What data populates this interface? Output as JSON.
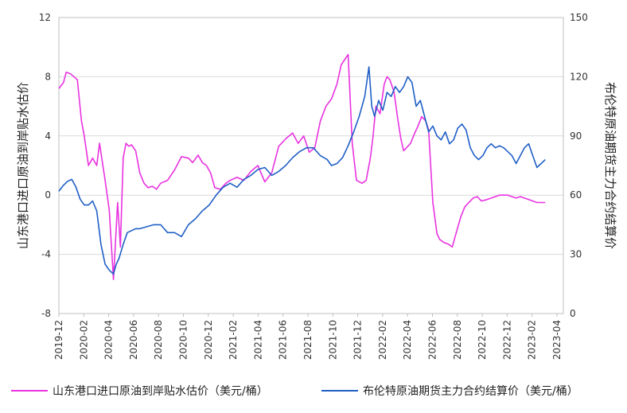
{
  "chart_data": {
    "type": "line",
    "title": "",
    "ylabel_left": "山东港口进口原油到岸贴水估价",
    "ylabel_right": "布伦特原油期货主力合约结算价",
    "ylim_left": [
      -8,
      12
    ],
    "ylim_right": [
      0,
      150
    ],
    "yticks_left": [
      "12",
      "8",
      "4",
      "0",
      "-4",
      "-8"
    ],
    "yticks_right": [
      "150",
      "120",
      "90",
      "60",
      "30",
      "0"
    ],
    "x_tick_labels": [
      "2019-12",
      "2020-02",
      "2020-04",
      "2020-06",
      "2020-08",
      "2020-10",
      "2020-12",
      "2021-02",
      "2021-04",
      "2021-06",
      "2021-08",
      "2021-10",
      "2021-12",
      "2022-02",
      "2022-04",
      "2022-06",
      "2022-08",
      "2022-10",
      "2022-12",
      "2023-02",
      "2023-04"
    ],
    "grid": true,
    "legend_position": "bottom",
    "series": [
      {
        "name": "山东港口进口原油到岸贴水估价（美元/桶）",
        "axis": "left",
        "color": "#e833e0",
        "x": [
          2019.917,
          2019.95,
          2019.97,
          2020.0,
          2020.05,
          2020.08,
          2020.1,
          2020.13,
          2020.16,
          2020.19,
          2020.21,
          2020.25,
          2020.28,
          2020.31,
          2020.34,
          2020.36,
          2020.38,
          2020.4,
          2020.42,
          2020.44,
          2020.47,
          2020.5,
          2020.53,
          2020.56,
          2020.59,
          2020.62,
          2020.65,
          2020.7,
          2020.75,
          2020.8,
          2020.85,
          2020.88,
          2020.92,
          2020.95,
          2020.98,
          2021.01,
          2021.04,
          2021.08,
          2021.12,
          2021.15,
          2021.2,
          2021.25,
          2021.3,
          2021.35,
          2021.4,
          2021.45,
          2021.5,
          2021.55,
          2021.6,
          2021.64,
          2021.68,
          2021.72,
          2021.76,
          2021.8,
          2021.84,
          2021.88,
          2021.92,
          2021.95,
          2022.0,
          2022.03,
          2022.06,
          2022.1,
          2022.13,
          2022.16,
          2022.18,
          2022.2,
          2022.23,
          2022.26,
          2022.28,
          2022.3,
          2022.33,
          2022.36,
          2022.38,
          2022.4,
          2022.42,
          2022.45,
          2022.48,
          2022.5,
          2022.53,
          2022.56,
          2022.58,
          2022.61,
          2022.64,
          2022.66,
          2022.69,
          2022.72,
          2022.75,
          2022.78,
          2022.81,
          2022.84,
          2022.87,
          2022.9,
          2022.93,
          2022.96,
          2023.0,
          2023.03,
          2023.06,
          2023.09,
          2023.12,
          2023.15,
          2023.18,
          2023.21,
          2023.24,
          2023.27,
          2023.3,
          2023.33,
          2023.36,
          2023.39,
          2023.42
        ],
        "y": [
          7.2,
          7.6,
          8.3,
          8.2,
          7.8,
          5.0,
          4.0,
          2.0,
          2.5,
          2.0,
          3.5,
          1.0,
          -1.0,
          -5.7,
          -0.5,
          -3.5,
          2.5,
          3.5,
          3.3,
          3.4,
          3.0,
          1.5,
          0.8,
          0.5,
          0.6,
          0.4,
          0.8,
          1.0,
          1.7,
          2.6,
          2.5,
          2.2,
          2.7,
          2.2,
          2.0,
          1.5,
          0.5,
          0.4,
          0.8,
          1.0,
          1.2,
          1.0,
          1.6,
          2.0,
          0.9,
          1.5,
          3.3,
          3.8,
          4.2,
          3.5,
          4.0,
          2.9,
          3.2,
          5.0,
          6.0,
          6.5,
          7.5,
          8.8,
          9.5,
          3.5,
          1.0,
          0.8,
          1.0,
          2.5,
          4.0,
          6.0,
          5.5,
          7.5,
          8.0,
          7.8,
          7.0,
          5.0,
          3.8,
          3.0,
          3.2,
          3.5,
          4.2,
          4.6,
          5.3,
          5.0,
          4.4,
          -0.5,
          -2.6,
          -3.0,
          -3.2,
          -3.3,
          -3.5,
          -2.5,
          -1.5,
          -0.8,
          -0.5,
          -0.2,
          -0.1,
          -0.4,
          -0.3,
          -0.2,
          -0.1,
          0.0,
          0.0,
          0.0,
          -0.1,
          -0.2,
          -0.1,
          -0.2,
          -0.3,
          -0.4,
          -0.5,
          -0.5,
          -0.5
        ]
      },
      {
        "name": "布伦特原油期货主力合约结算价（美元/桶）",
        "axis": "right",
        "color": "#1f5fc6",
        "x": [
          2019.917,
          2019.95,
          2019.98,
          2020.01,
          2020.04,
          2020.07,
          2020.1,
          2020.13,
          2020.16,
          2020.19,
          2020.22,
          2020.25,
          2020.28,
          2020.31,
          2020.33,
          2020.35,
          2020.38,
          2020.41,
          2020.44,
          2020.47,
          2020.5,
          2020.55,
          2020.6,
          2020.65,
          2020.7,
          2020.75,
          2020.8,
          2020.85,
          2020.9,
          2020.95,
          2021.0,
          2021.05,
          2021.1,
          2021.15,
          2021.2,
          2021.25,
          2021.3,
          2021.35,
          2021.4,
          2021.45,
          2021.5,
          2021.55,
          2021.6,
          2021.65,
          2021.7,
          2021.75,
          2021.8,
          2021.85,
          2021.88,
          2021.92,
          2021.96,
          2022.0,
          2022.04,
          2022.08,
          2022.12,
          2022.15,
          2022.17,
          2022.19,
          2022.22,
          2022.25,
          2022.28,
          2022.31,
          2022.34,
          2022.37,
          2022.4,
          2022.43,
          2022.46,
          2022.49,
          2022.52,
          2022.55,
          2022.58,
          2022.61,
          2022.64,
          2022.67,
          2022.7,
          2022.73,
          2022.76,
          2022.79,
          2022.82,
          2022.85,
          2022.88,
          2022.91,
          2022.94,
          2022.97,
          2023.0,
          2023.03,
          2023.06,
          2023.09,
          2023.12,
          2023.15,
          2023.18,
          2023.21,
          2023.24,
          2023.27,
          2023.3,
          2023.33,
          2023.36,
          2023.39,
          2023.42
        ],
        "y": [
          62,
          65,
          67,
          68,
          64,
          58,
          55,
          55,
          57,
          52,
          35,
          25,
          22,
          20,
          25,
          28,
          35,
          41,
          42,
          43,
          43,
          44,
          45,
          45,
          41,
          41,
          39,
          45,
          48,
          52,
          55,
          60,
          64,
          66,
          64,
          68,
          70,
          73,
          74,
          70,
          72,
          75,
          79,
          82,
          84,
          84,
          80,
          78,
          75,
          76,
          79,
          85,
          92,
          100,
          110,
          125,
          105,
          100,
          108,
          103,
          112,
          110,
          115,
          112,
          115,
          120,
          117,
          105,
          108,
          100,
          92,
          95,
          90,
          88,
          92,
          86,
          88,
          94,
          96,
          93,
          84,
          80,
          78,
          80,
          84,
          86,
          84,
          85,
          84,
          82,
          80,
          76,
          80,
          84,
          86,
          80,
          74,
          76,
          78
        ]
      }
    ]
  }
}
